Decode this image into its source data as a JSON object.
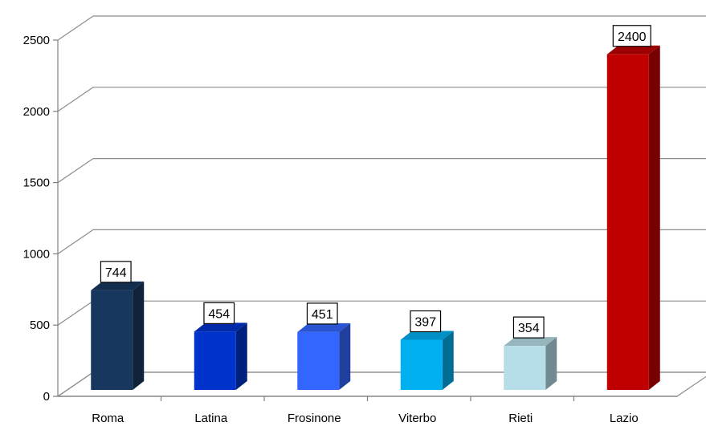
{
  "chart_data": {
    "type": "bar",
    "categories": [
      "Roma",
      "Latina",
      "Frosinone",
      "Viterbo",
      "Rieti",
      "Lazio"
    ],
    "values": [
      744,
      454,
      451,
      397,
      354,
      2400
    ],
    "colors": [
      "#17375E",
      "#0033CC",
      "#3366FF",
      "#00B0F0",
      "#B7DEE8",
      "#C00000"
    ],
    "ylim": [
      0,
      2500
    ],
    "yticks": [
      "0",
      "500",
      "1000",
      "1500",
      "2000",
      "2500"
    ],
    "ytick_values": [
      0,
      500,
      1000,
      1500,
      2000,
      2500
    ],
    "data_labels": [
      "744",
      "454",
      "451",
      "397",
      "354",
      "2400"
    ],
    "title": "",
    "xlabel": "",
    "ylabel": "",
    "grid": true,
    "style": "3d-column"
  }
}
